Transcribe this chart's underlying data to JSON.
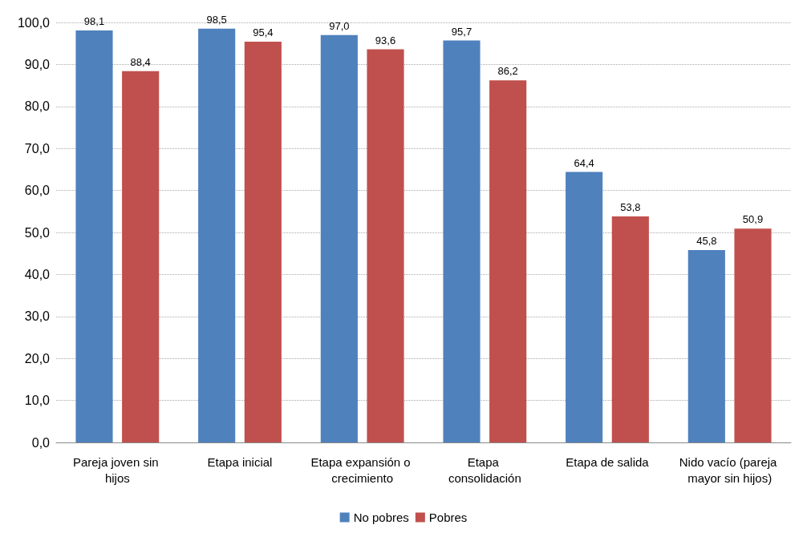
{
  "chart_data": {
    "type": "bar",
    "categories": [
      "Pareja joven sin hijos",
      "Etapa inicial",
      "Etapa expansión o crecimiento",
      "Etapa consolidación",
      "Etapa de salida",
      "Nido vacío (pareja mayor sin hijos)"
    ],
    "series": [
      {
        "name": "No pobres",
        "color": "#4f81bd",
        "values": [
          98.1,
          98.5,
          97.0,
          95.7,
          64.4,
          45.8
        ],
        "value_labels": [
          "98,1",
          "98,5",
          "97,0",
          "95,7",
          "64,4",
          "45,8"
        ]
      },
      {
        "name": "Pobres",
        "color": "#c0504d",
        "values": [
          88.4,
          95.4,
          93.6,
          86.2,
          53.8,
          50.9
        ],
        "value_labels": [
          "88,4",
          "95,4",
          "93,6",
          "86,2",
          "53,8",
          "50,9"
        ]
      }
    ],
    "ylim": [
      0,
      100
    ],
    "yticks": [
      {
        "value": 0,
        "label": "0,0"
      },
      {
        "value": 10,
        "label": "10,0"
      },
      {
        "value": 20,
        "label": "20,0"
      },
      {
        "value": 30,
        "label": "30,0"
      },
      {
        "value": 40,
        "label": "40,0"
      },
      {
        "value": 50,
        "label": "50,0"
      },
      {
        "value": 60,
        "label": "60,0"
      },
      {
        "value": 70,
        "label": "70,0"
      },
      {
        "value": 80,
        "label": "80,0"
      },
      {
        "value": 90,
        "label": "90,0"
      },
      {
        "value": 100,
        "label": "100,0"
      }
    ],
    "grid": "y",
    "legend": "bottom"
  }
}
